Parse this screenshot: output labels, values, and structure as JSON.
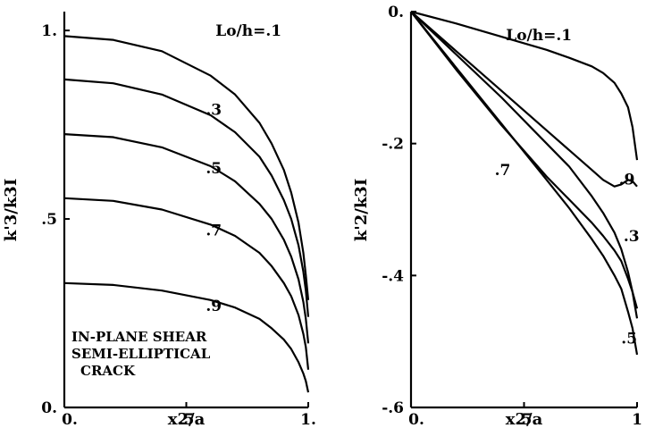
{
  "chart_data": [
    {
      "id": "left",
      "type": "line",
      "title": "",
      "xlabel": "x2/a",
      "ylabel": "k'3/k3I",
      "xlim": [
        0,
        1
      ],
      "ylim": [
        0,
        1.05
      ],
      "grid": false,
      "xticks": [
        {
          "value": 0,
          "label": "0."
        },
        {
          "value": 0.5,
          "label": ".5"
        },
        {
          "value": 1,
          "label": "1."
        }
      ],
      "yticks": [
        {
          "value": 0,
          "label": "0."
        },
        {
          "value": 0.5,
          "label": ".5"
        },
        {
          "value": 1,
          "label": "1."
        }
      ],
      "note": [
        "IN-PLANE SHEAR",
        "SEMI-ELLIPTICAL",
        "CRACK"
      ],
      "series": [
        {
          "label": "Lo/h=.1",
          "label_at": [
            0.62,
            1.0
          ],
          "x": [
            0,
            0.2,
            0.4,
            0.6,
            0.7,
            0.8,
            0.85,
            0.9,
            0.93,
            0.96,
            0.98,
            0.99,
            1.0
          ],
          "y": [
            0.985,
            0.975,
            0.945,
            0.88,
            0.83,
            0.755,
            0.7,
            0.63,
            0.57,
            0.49,
            0.41,
            0.35,
            0.285
          ]
        },
        {
          "label": ".3",
          "label_at": [
            0.58,
            0.79
          ],
          "x": [
            0,
            0.2,
            0.4,
            0.6,
            0.7,
            0.8,
            0.85,
            0.9,
            0.93,
            0.96,
            0.98,
            0.99,
            1.0
          ],
          "y": [
            0.87,
            0.86,
            0.83,
            0.775,
            0.73,
            0.665,
            0.615,
            0.55,
            0.5,
            0.43,
            0.36,
            0.31,
            0.24
          ]
        },
        {
          "label": ".5",
          "label_at": [
            0.58,
            0.635
          ],
          "x": [
            0,
            0.2,
            0.4,
            0.6,
            0.7,
            0.8,
            0.85,
            0.9,
            0.93,
            0.96,
            0.98,
            0.99,
            1.0
          ],
          "y": [
            0.725,
            0.717,
            0.69,
            0.64,
            0.6,
            0.54,
            0.5,
            0.445,
            0.4,
            0.34,
            0.28,
            0.235,
            0.17
          ]
        },
        {
          "label": ".7",
          "label_at": [
            0.58,
            0.47
          ],
          "x": [
            0,
            0.2,
            0.4,
            0.6,
            0.7,
            0.8,
            0.85,
            0.9,
            0.93,
            0.96,
            0.98,
            0.99,
            1.0
          ],
          "y": [
            0.555,
            0.548,
            0.525,
            0.485,
            0.455,
            0.41,
            0.375,
            0.33,
            0.295,
            0.245,
            0.195,
            0.16,
            0.1
          ]
        },
        {
          "label": ".9",
          "label_at": [
            0.58,
            0.27
          ],
          "x": [
            0,
            0.2,
            0.4,
            0.6,
            0.7,
            0.8,
            0.85,
            0.9,
            0.93,
            0.96,
            0.98,
            0.99,
            1.0
          ],
          "y": [
            0.33,
            0.325,
            0.31,
            0.285,
            0.265,
            0.235,
            0.21,
            0.18,
            0.155,
            0.12,
            0.09,
            0.07,
            0.04
          ]
        }
      ]
    },
    {
      "id": "right",
      "type": "line",
      "title": "",
      "xlabel": "x2/a",
      "ylabel": "k'2/k3I",
      "xlim": [
        0,
        1
      ],
      "ylim": [
        -0.6,
        0
      ],
      "grid": false,
      "xticks": [
        {
          "value": 0,
          "label": "0."
        },
        {
          "value": 0.5,
          "label": ".5"
        },
        {
          "value": 1,
          "label": "1"
        }
      ],
      "yticks": [
        {
          "value": 0,
          "label": "0."
        },
        {
          "value": -0.2,
          "label": "-.2"
        },
        {
          "value": -0.4,
          "label": "-.4"
        },
        {
          "value": -0.6,
          "label": "-.6"
        }
      ],
      "series": [
        {
          "label": "Lo/h=.1",
          "label_at": [
            0.42,
            -0.035
          ],
          "x": [
            0,
            0.2,
            0.4,
            0.6,
            0.7,
            0.8,
            0.85,
            0.9,
            0.93,
            0.96,
            0.98,
            1.0
          ],
          "y": [
            0,
            -0.018,
            -0.038,
            -0.058,
            -0.07,
            -0.083,
            -0.093,
            -0.108,
            -0.124,
            -0.145,
            -0.175,
            -0.225
          ]
        },
        {
          "label": ".9",
          "label_at": [
            0.92,
            -0.254
          ],
          "x": [
            0,
            0.2,
            0.4,
            0.6,
            0.7,
            0.8,
            0.85,
            0.9,
            0.93,
            0.96,
            0.98,
            1.0
          ],
          "y": [
            0,
            -0.06,
            -0.12,
            -0.18,
            -0.21,
            -0.24,
            -0.255,
            -0.265,
            -0.262,
            -0.255,
            -0.257,
            -0.265
          ]
        },
        {
          "label": ".3",
          "label_at": [
            0.94,
            -0.34
          ],
          "x": [
            0,
            0.2,
            0.4,
            0.6,
            0.7,
            0.8,
            0.85,
            0.9,
            0.93,
            0.96,
            0.98,
            1.0
          ],
          "y": [
            0,
            -0.065,
            -0.13,
            -0.2,
            -0.235,
            -0.28,
            -0.305,
            -0.335,
            -0.36,
            -0.395,
            -0.425,
            -0.465
          ]
        },
        {
          "label": ".5",
          "label_at": [
            0.93,
            -0.495
          ],
          "x": [
            0,
            0.2,
            0.4,
            0.6,
            0.7,
            0.8,
            0.85,
            0.9,
            0.93,
            0.96,
            0.98,
            1.0
          ],
          "y": [
            0,
            -0.085,
            -0.17,
            -0.255,
            -0.298,
            -0.345,
            -0.37,
            -0.4,
            -0.42,
            -0.455,
            -0.48,
            -0.52
          ]
        },
        {
          "label": ".7",
          "label_at": [
            0.37,
            -0.24
          ],
          "x": [
            0,
            0.2,
            0.4,
            0.6,
            0.7,
            0.8,
            0.85,
            0.9,
            0.93,
            0.96,
            0.98,
            1.0
          ],
          "y": [
            0,
            -0.088,
            -0.172,
            -0.25,
            -0.285,
            -0.32,
            -0.34,
            -0.362,
            -0.378,
            -0.405,
            -0.425,
            -0.45
          ]
        }
      ]
    }
  ]
}
